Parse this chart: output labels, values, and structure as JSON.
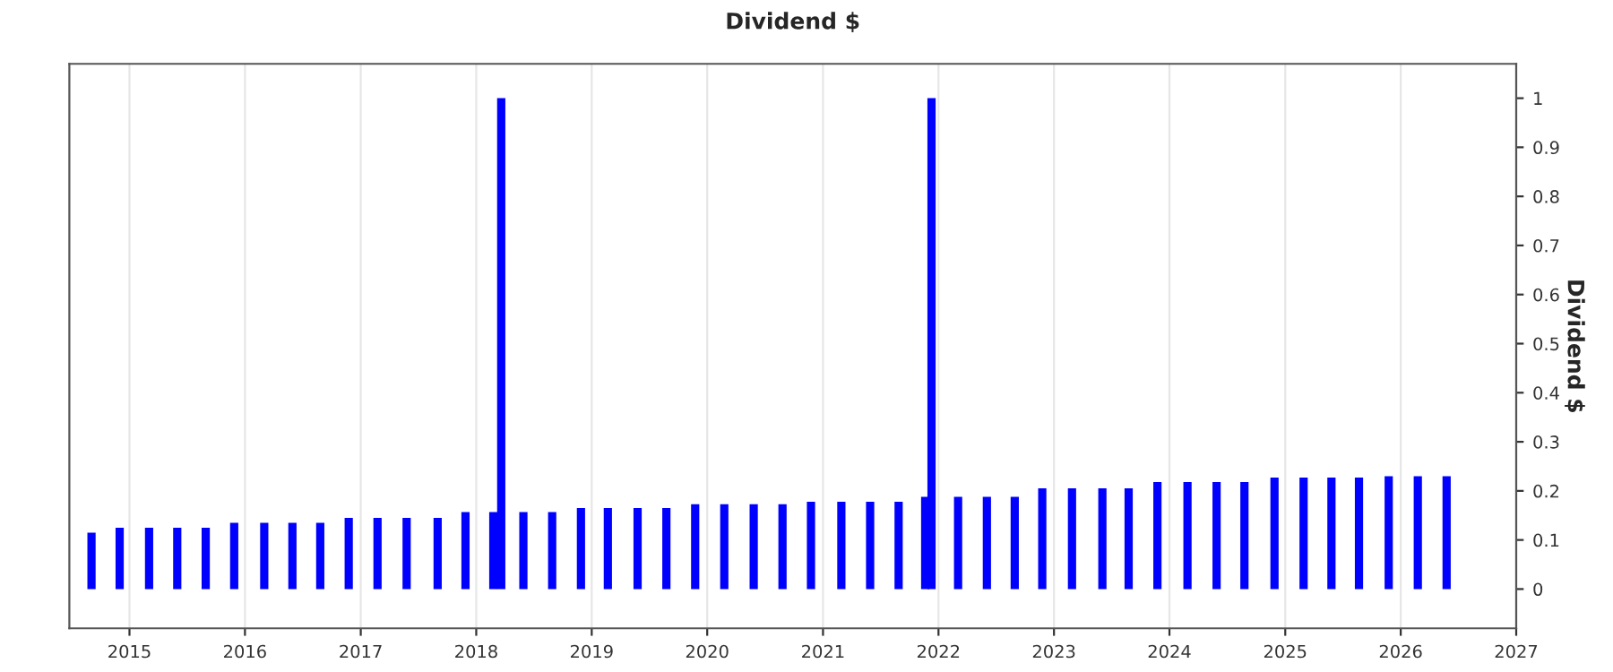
{
  "chart_data": {
    "type": "bar",
    "title": "Dividend $",
    "ylabel": "Dividend $",
    "x": [
      "2014-09-03",
      "2014-12-01",
      "2015-03-04",
      "2015-06-01",
      "2015-08-30",
      "2015-11-28",
      "2016-03-02",
      "2016-05-30",
      "2016-08-26",
      "2016-11-24",
      "2017-02-23",
      "2017-05-26",
      "2017-09-01",
      "2017-11-28",
      "2018-02-24",
      "2018-03-21",
      "2018-05-30",
      "2018-08-29",
      "2018-11-28",
      "2019-02-21",
      "2019-05-26",
      "2019-08-25",
      "2019-11-24",
      "2020-02-24",
      "2020-05-27",
      "2020-08-26",
      "2020-11-24",
      "2021-02-28",
      "2021-05-30",
      "2021-08-28",
      "2021-11-20",
      "2021-12-10",
      "2022-03-04",
      "2022-06-03",
      "2022-08-30",
      "2022-11-25",
      "2023-02-27",
      "2023-06-03",
      "2023-08-25",
      "2023-11-24",
      "2024-02-27",
      "2024-05-29",
      "2024-08-25",
      "2024-11-28",
      "2025-02-28",
      "2025-05-27",
      "2025-08-22",
      "2025-11-24",
      "2026-02-24",
      "2026-05-26"
    ],
    "values": [
      0.115,
      0.125,
      0.125,
      0.125,
      0.125,
      0.135,
      0.135,
      0.135,
      0.135,
      0.145,
      0.145,
      0.145,
      0.145,
      0.157,
      0.157,
      1.0,
      0.157,
      0.157,
      0.165,
      0.165,
      0.165,
      0.165,
      0.173,
      0.173,
      0.173,
      0.173,
      0.178,
      0.178,
      0.178,
      0.178,
      0.188,
      1.0,
      0.188,
      0.188,
      0.188,
      0.205,
      0.205,
      0.205,
      0.205,
      0.218,
      0.218,
      0.218,
      0.218,
      0.227,
      0.227,
      0.227,
      0.227,
      0.23,
      0.23,
      0.23
    ],
    "color": "#0000ff",
    "xlim": [
      "2014-06-25",
      "2027-01-01"
    ],
    "xticks": [
      {
        "value": "2015-01-01",
        "label": "2015"
      },
      {
        "value": "2016-01-01",
        "label": "2016"
      },
      {
        "value": "2017-01-01",
        "label": "2017"
      },
      {
        "value": "2018-01-01",
        "label": "2018"
      },
      {
        "value": "2019-01-01",
        "label": "2019"
      },
      {
        "value": "2020-01-01",
        "label": "2020"
      },
      {
        "value": "2021-01-01",
        "label": "2021"
      },
      {
        "value": "2022-01-01",
        "label": "2022"
      },
      {
        "value": "2023-01-01",
        "label": "2023"
      },
      {
        "value": "2024-01-01",
        "label": "2024"
      },
      {
        "value": "2025-01-01",
        "label": "2025"
      },
      {
        "value": "2026-01-01",
        "label": "2026"
      },
      {
        "value": "2027-01-01",
        "label": "2027"
      }
    ],
    "ylim": [
      -0.08,
      1.07
    ],
    "yticks": [
      0,
      0.1,
      0.2,
      0.3,
      0.4,
      0.5,
      0.6,
      0.7,
      0.8,
      0.9,
      1
    ],
    "grid": "x",
    "legend": false
  }
}
